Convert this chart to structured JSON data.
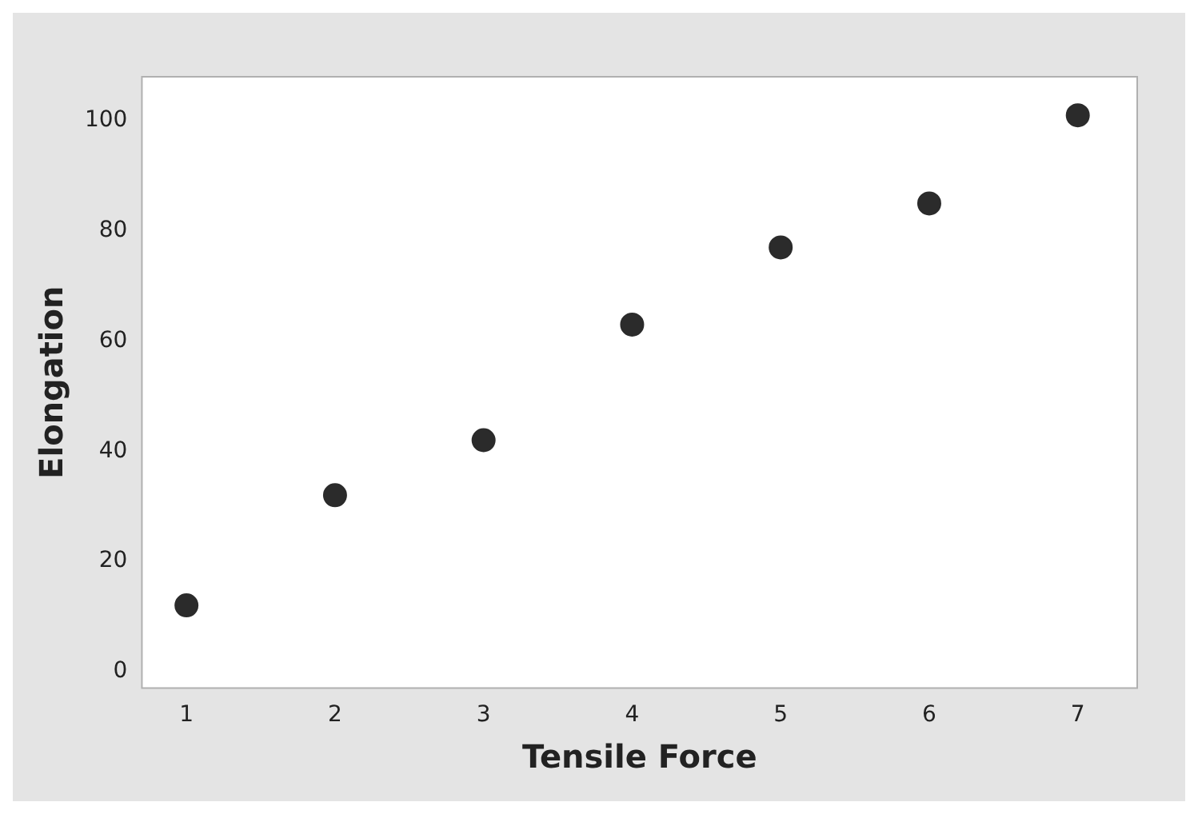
{
  "chart_data": {
    "type": "scatter",
    "xlabel": "Tensile Force",
    "ylabel": "Elongation",
    "x": [
      1,
      2,
      3,
      4,
      5,
      6,
      7
    ],
    "values": [
      12,
      32,
      42,
      63,
      77,
      85,
      101
    ],
    "color": "#2b2b2b",
    "xlim": [
      0.7,
      7.4
    ],
    "xticks": [
      1,
      2,
      3,
      4,
      5,
      6,
      7
    ],
    "ylim": [
      -3,
      108
    ],
    "yticks": [
      0,
      20,
      40,
      60,
      80,
      100
    ],
    "grid": false,
    "marker": "circle"
  }
}
